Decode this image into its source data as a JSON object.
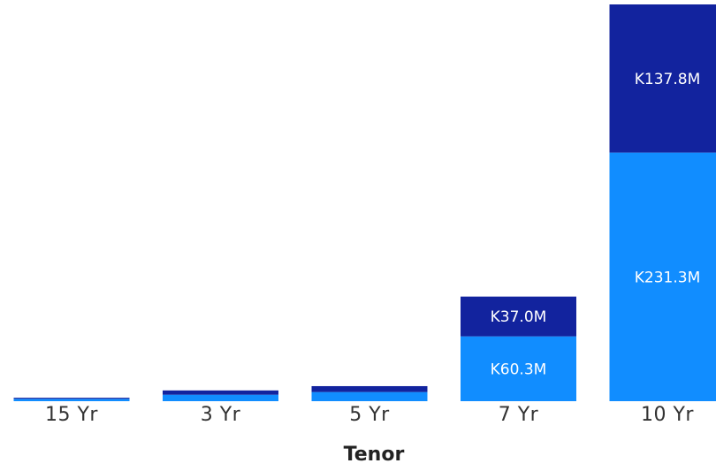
{
  "chart_data": {
    "type": "bar",
    "stacked": true,
    "title": "",
    "xlabel": "Tenor",
    "ylabel": "",
    "categories": [
      "15 Yr",
      "3 Yr",
      "5 Yr",
      "7 Yr",
      "10 Yr"
    ],
    "series": [
      {
        "values": [
          2.2,
          6.0,
          8.5,
          60.3,
          231.3
        ],
        "value_labels": [
          "",
          "",
          "",
          "K60.3M",
          "K231.3M"
        ],
        "color": "#118DFF"
      },
      {
        "values": [
          1.0,
          4.0,
          5.5,
          37.0,
          137.8
        ],
        "value_labels": [
          "",
          "",
          "",
          "K37.0M",
          "K137.8M"
        ],
        "color": "#12239E"
      }
    ],
    "ylim": [
      0,
      369.1
    ],
    "grid": false,
    "legend": "none"
  }
}
